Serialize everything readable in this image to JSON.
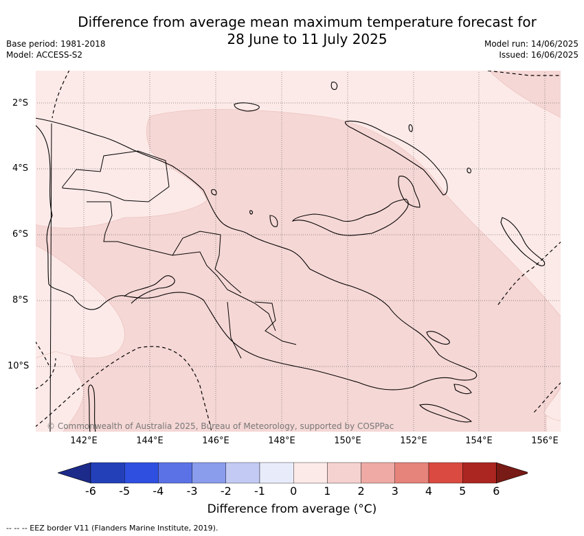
{
  "title_line1": "Difference from average mean maximum temperature forecast for",
  "title_line2": "28 June to 11 July 2025",
  "meta_left": [
    "Base period: 1981-2018",
    "Model: ACCESS-S2"
  ],
  "meta_right": [
    "Model run: 14/06/2025",
    "Issued: 16/06/2025"
  ],
  "lon_labels": [
    "142°E",
    "144°E",
    "146°E",
    "148°E",
    "150°E",
    "152°E",
    "154°E",
    "156°E"
  ],
  "lat_labels": [
    "2°S",
    "4°S",
    "6°S",
    "8°S",
    "10°S"
  ],
  "map_extent": {
    "lon": [
      140.6,
      156.5
    ],
    "lat": [
      -12.0,
      -1.0
    ]
  },
  "colorbar": {
    "ticks": [
      "-6",
      "-5",
      "-4",
      "-3",
      "-2",
      "-1",
      "0",
      "1",
      "2",
      "3",
      "4",
      "5",
      "6"
    ],
    "colors": [
      "#1c2a8a",
      "#2340b8",
      "#2f4fe0",
      "#5b72e6",
      "#8a9cec",
      "#c3caf4",
      "#e8ecfa",
      "#fceae8",
      "#f5d2d0",
      "#efaaa5",
      "#e6837b",
      "#da4a40",
      "#ab2620",
      "#781a15"
    ],
    "title": "Difference from average (°C)"
  },
  "legend_categories": [
    {
      "label": "0 to 1",
      "color": "#fceae8"
    },
    {
      "label": "1 to 2",
      "color": "#f5d7d5"
    }
  ],
  "copyright": "© Commonwealth of Australia 2025, Bureau of Meteorology, supported by COSPPac",
  "footer": "-- --  -- EEZ border V11 (Flanders Marine Institute, 2019)."
}
